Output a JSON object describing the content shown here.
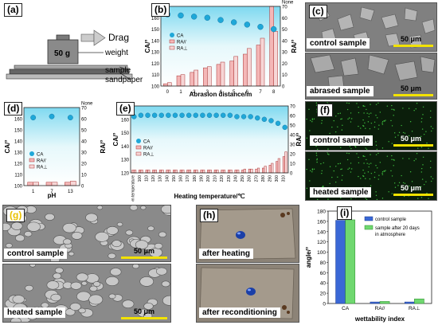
{
  "panels": {
    "a": {
      "label": "(a)",
      "drag": "Drag",
      "weight_mass": "50 g",
      "weight": "weight",
      "sample": "sample",
      "sandpaper": "sandpaper"
    },
    "b": {
      "label": "(b)"
    },
    "c": {
      "label": "(c)",
      "top_caption": "control sample",
      "bottom_caption": "abrased sample",
      "scale": "50 μm"
    },
    "d": {
      "label": "(d)"
    },
    "e": {
      "label": "(e)"
    },
    "f": {
      "label": "(f)",
      "top_caption": "control sample",
      "bottom_caption": "heated sample",
      "scale": "50 μm"
    },
    "g": {
      "label": "(g)",
      "top_caption": "control sample",
      "bottom_caption": "heated sample",
      "scale": "50 μm"
    },
    "h": {
      "label": "(h)",
      "top_caption": "after heating",
      "bottom_caption": "after reconditioning"
    },
    "i": {
      "label": "(i)"
    }
  },
  "chart_data": [
    {
      "id": "b",
      "type": "bar",
      "xlabel": "Abrasion distance/m",
      "ylabel": "CA/°",
      "y2label": "RA/°",
      "x": [
        0,
        1,
        2,
        3,
        4,
        5,
        6,
        7,
        8
      ],
      "ylim": [
        100,
        170
      ],
      "yticks": [
        100,
        110,
        120,
        130,
        140,
        150,
        160,
        170
      ],
      "y2lim": [
        0,
        70
      ],
      "y2ticks": [
        "0",
        "10",
        "20",
        "30",
        "40",
        "50",
        "60",
        "70",
        "None"
      ],
      "series": [
        {
          "name": "CA",
          "axis": "left",
          "style": "points",
          "values": [
            163,
            162,
            161,
            160,
            158,
            156,
            154,
            152,
            150
          ]
        },
        {
          "name": "RA//",
          "axis": "right",
          "style": "bar",
          "values": [
            2,
            9,
            12,
            16,
            19,
            22,
            28,
            36,
            70
          ]
        },
        {
          "name": "RA⊥",
          "axis": "right",
          "style": "bar",
          "values": [
            3,
            10,
            14,
            17,
            21,
            26,
            33,
            42,
            48
          ]
        }
      ]
    },
    {
      "id": "d",
      "type": "bar",
      "xlabel": "pH",
      "ylabel": "CA/°",
      "y2label": "RA/°",
      "categories": [
        "1",
        "7",
        "13"
      ],
      "ylim": [
        100,
        170
      ],
      "yticks": [
        100,
        110,
        120,
        130,
        140,
        150,
        160,
        170
      ],
      "y2lim": [
        0,
        70
      ],
      "y2ticks": [
        "0",
        "10",
        "20",
        "30",
        "40",
        "50",
        "60",
        "70",
        "None"
      ],
      "series": [
        {
          "name": "CA",
          "axis": "left",
          "style": "points",
          "values": [
            161,
            162,
            161
          ]
        },
        {
          "name": "RA//",
          "axis": "right",
          "style": "bar",
          "values": [
            3,
            3,
            3
          ]
        },
        {
          "name": "RA⊥",
          "axis": "right",
          "style": "bar",
          "values": [
            3,
            3,
            4
          ]
        }
      ]
    },
    {
      "id": "e",
      "type": "bar",
      "xlabel": "Heating temperature/℃",
      "ylabel": "CA/°",
      "y2label": "RA/°",
      "categories": [
        "Room temperature",
        "100",
        "110",
        "120",
        "130",
        "140",
        "150",
        "160",
        "170",
        "180",
        "190",
        "200",
        "210",
        "220",
        "230",
        "240",
        "250",
        "260",
        "270",
        "280",
        "290",
        "300",
        "310"
      ],
      "ylim": [
        120,
        170
      ],
      "yticks": [
        120,
        130,
        140,
        150,
        160,
        170
      ],
      "y2lim": [
        0,
        70
      ],
      "y2ticks": [
        "0",
        "10",
        "20",
        "30",
        "40",
        "50",
        "60",
        "70"
      ],
      "series": [
        {
          "name": "CA",
          "axis": "left",
          "style": "points",
          "values": [
            162,
            163,
            163,
            163,
            163,
            163,
            163,
            163,
            163,
            163,
            163,
            163,
            163,
            163,
            163,
            162,
            162,
            162,
            161,
            160,
            159,
            157,
            154
          ]
        },
        {
          "name": "RA//",
          "axis": "right",
          "style": "bar",
          "values": [
            3,
            3,
            3,
            3,
            3,
            3,
            3,
            3,
            3,
            3,
            3,
            3,
            3,
            3,
            3,
            3,
            3,
            4,
            4,
            5,
            8,
            12,
            17
          ]
        },
        {
          "name": "RA⊥",
          "axis": "right",
          "style": "bar",
          "values": [
            3,
            3,
            3,
            3,
            3,
            3,
            3,
            3,
            3,
            3,
            3,
            3,
            3,
            3,
            3,
            3,
            4,
            4,
            5,
            7,
            10,
            15,
            22
          ]
        }
      ]
    },
    {
      "id": "i",
      "type": "bar",
      "xlabel": "wettability index",
      "ylabel": "angle/°",
      "categories": [
        "CA",
        "RA//",
        "RA⊥"
      ],
      "ylim": [
        0,
        180
      ],
      "yticks": [
        0,
        20,
        40,
        60,
        80,
        100,
        120,
        140,
        160,
        180
      ],
      "legend": "top-right",
      "series": [
        {
          "name": "control sample",
          "values": [
            162,
            3,
            3
          ]
        },
        {
          "name": "sample after 20 days in atmosphere",
          "values": [
            163,
            4,
            9
          ]
        }
      ]
    }
  ]
}
